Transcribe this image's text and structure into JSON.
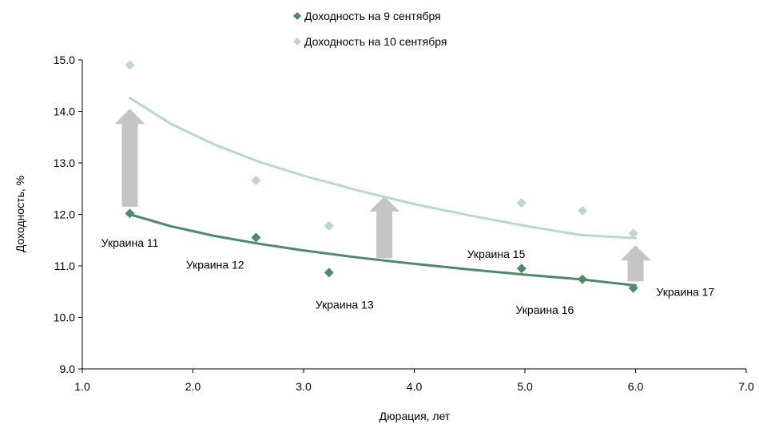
{
  "chart_data": {
    "type": "scatter",
    "title": "",
    "xlabel": "Дюрация, лет",
    "ylabel": "Доходность, %",
    "xlim": [
      1.0,
      7.0
    ],
    "ylim": [
      9.0,
      15.0
    ],
    "x_ticks": [
      1.0,
      2.0,
      3.0,
      4.0,
      5.0,
      6.0,
      7.0
    ],
    "y_ticks": [
      9.0,
      10.0,
      11.0,
      12.0,
      13.0,
      14.0,
      15.0
    ],
    "x_tick_labels": [
      "1.0",
      "2.0",
      "3.0",
      "4.0",
      "5.0",
      "6.0",
      "7.0"
    ],
    "y_tick_labels": [
      "9.0",
      "10.0",
      "11.0",
      "12.0",
      "13.0",
      "14.0",
      "15.0"
    ],
    "grid": false,
    "legend_position": "top-center",
    "series": [
      {
        "name": "Доходность на 9 сентября",
        "color": "#4e8a68",
        "marker": "diamond",
        "trendline": "logarithmic",
        "points": [
          {
            "x": 1.43,
            "y": 12.02
          },
          {
            "x": 2.57,
            "y": 11.55
          },
          {
            "x": 3.23,
            "y": 10.87
          },
          {
            "x": 4.97,
            "y": 10.95
          },
          {
            "x": 5.52,
            "y": 10.74
          },
          {
            "x": 5.98,
            "y": 10.57
          }
        ]
      },
      {
        "name": "Доходность на 10 сентября",
        "color": "#b9d9c4",
        "marker": "diamond",
        "trendline": "logarithmic",
        "points": [
          {
            "x": 1.43,
            "y": 14.9
          },
          {
            "x": 2.57,
            "y": 12.66
          },
          {
            "x": 3.23,
            "y": 11.78
          },
          {
            "x": 4.97,
            "y": 12.22
          },
          {
            "x": 5.52,
            "y": 12.07
          },
          {
            "x": 5.98,
            "y": 11.63
          }
        ]
      }
    ],
    "trend_lines": [
      {
        "series": 0,
        "color": "#4e8a68",
        "x": [
          1.43,
          1.8,
          2.2,
          2.6,
          3.0,
          3.5,
          4.0,
          4.5,
          5.0,
          5.5,
          6.0
        ],
        "y": [
          12.0,
          11.77,
          11.58,
          11.43,
          11.3,
          11.16,
          11.04,
          10.93,
          10.83,
          10.74,
          10.62
        ]
      },
      {
        "series": 1,
        "color": "#b9d9c4",
        "x": [
          1.43,
          1.8,
          2.2,
          2.6,
          3.0,
          3.5,
          4.0,
          4.5,
          5.0,
          5.5,
          6.0
        ],
        "y": [
          14.26,
          13.76,
          13.35,
          13.02,
          12.75,
          12.46,
          12.2,
          11.98,
          11.78,
          11.6,
          11.54
        ]
      }
    ],
    "arrows": [
      {
        "x": 1.43,
        "y_from": 12.15,
        "y_to": 14.05
      },
      {
        "x": 3.73,
        "y_from": 11.15,
        "y_to": 12.35
      },
      {
        "x": 6.0,
        "y_from": 10.7,
        "y_to": 11.4
      }
    ],
    "annotations": [
      {
        "text": "Украина 11",
        "x": 1.43,
        "y": 11.45,
        "anchor": "middle"
      },
      {
        "text": "Украина 12",
        "x": 2.2,
        "y": 11.02,
        "anchor": "middle"
      },
      {
        "text": "Украина 13",
        "x": 3.37,
        "y": 10.25,
        "anchor": "middle"
      },
      {
        "text": "Украина 15",
        "x": 4.74,
        "y": 11.23,
        "anchor": "middle"
      },
      {
        "text": "Украина 16",
        "x": 5.18,
        "y": 10.15,
        "anchor": "middle"
      },
      {
        "text": "Украина 17",
        "x": 6.45,
        "y": 10.5,
        "anchor": "middle"
      }
    ]
  }
}
